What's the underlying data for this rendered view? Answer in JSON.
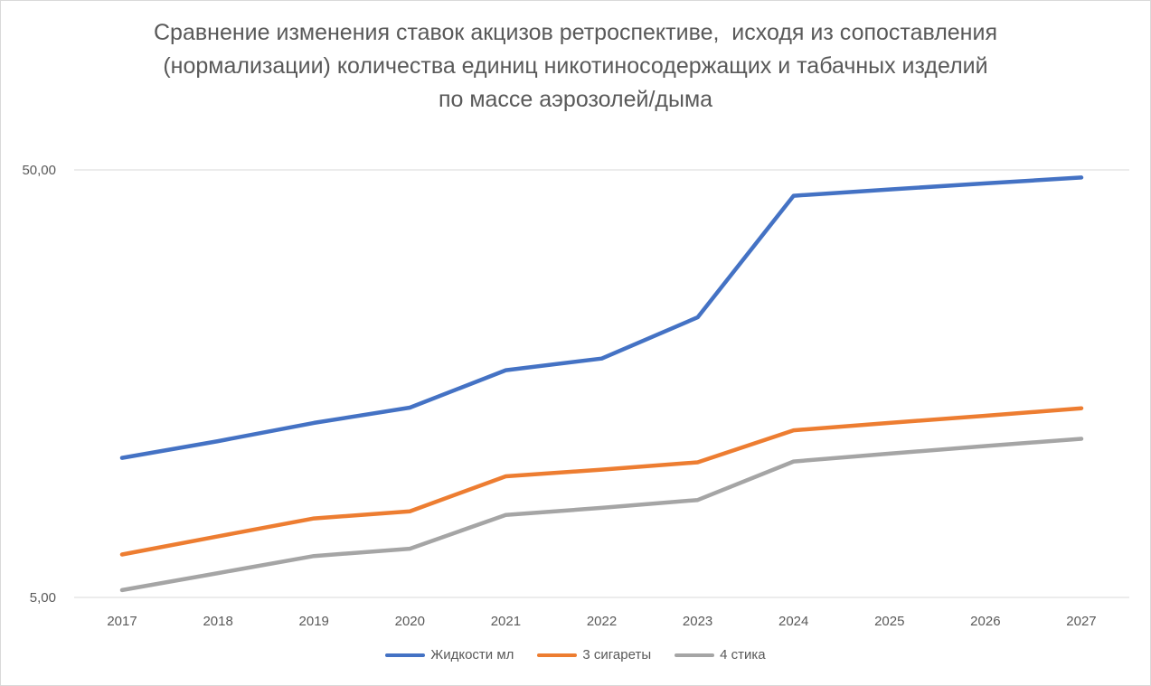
{
  "chart_data": {
    "type": "line",
    "title_lines": [
      "Сравнение изменения ставок акцизов ретроспективе,  исходя из сопоставления",
      "(нормализации) количества единиц никотиносодержащих и табачных изделий",
      "по массе аэрозолей/дыма"
    ],
    "x": [
      "2017",
      "2018",
      "2019",
      "2020",
      "2021",
      "2022",
      "2023",
      "2024",
      "2025",
      "2026",
      "2027"
    ],
    "y_scale": "log",
    "ylim": [
      5,
      50
    ],
    "y_ticks": [
      {
        "value": 5,
        "label": "5,00"
      },
      {
        "value": 50,
        "label": "50,00"
      }
    ],
    "grid": true,
    "legend_position": "bottom",
    "series": [
      {
        "name": "Жидкости мл",
        "color": "#4472c4",
        "values": [
          10.6,
          11.6,
          12.8,
          13.9,
          17.0,
          18.1,
          22.6,
          43.5,
          45.0,
          46.5,
          48.0
        ]
      },
      {
        "name": "3 сигареты",
        "color": "#ed7d31",
        "values": [
          6.3,
          6.95,
          7.65,
          7.95,
          9.6,
          9.95,
          10.35,
          12.3,
          12.8,
          13.3,
          13.85
        ]
      },
      {
        "name": "4 стика",
        "color": "#a5a5a5",
        "values": [
          5.2,
          5.7,
          6.25,
          6.5,
          7.8,
          8.1,
          8.45,
          10.4,
          10.85,
          11.3,
          11.75
        ]
      }
    ]
  }
}
